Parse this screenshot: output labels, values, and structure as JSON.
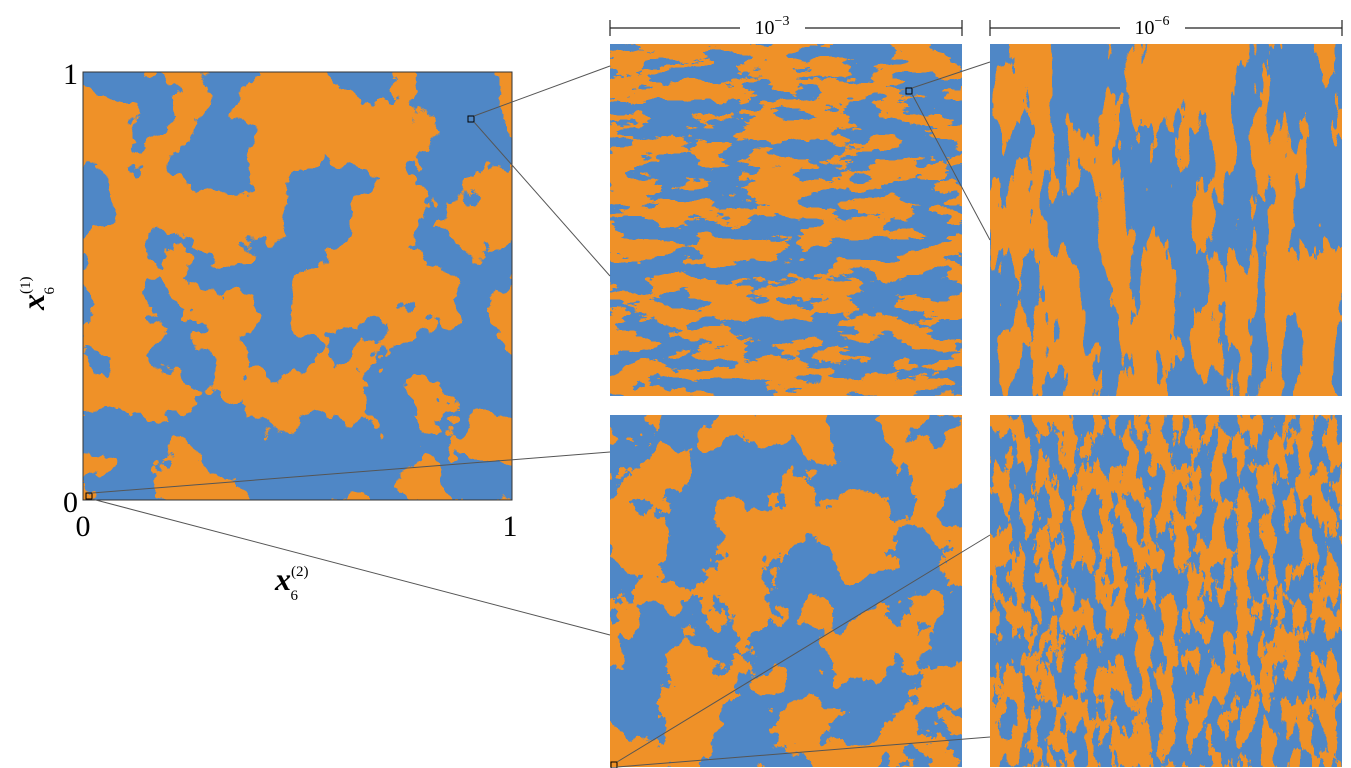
{
  "main_panel": {
    "x_axis": {
      "label": {
        "base": "x",
        "subscript": "6",
        "superscript": "(2)"
      },
      "ticks": [
        "0",
        "1"
      ]
    },
    "y_axis": {
      "label": {
        "base": "x",
        "subscript": "6",
        "superscript": "(1)"
      },
      "ticks": [
        "0",
        "1"
      ]
    }
  },
  "scale_bars": [
    {
      "base": "10",
      "exponent": "−3"
    },
    {
      "base": "10",
      "exponent": "−6"
    }
  ]
}
